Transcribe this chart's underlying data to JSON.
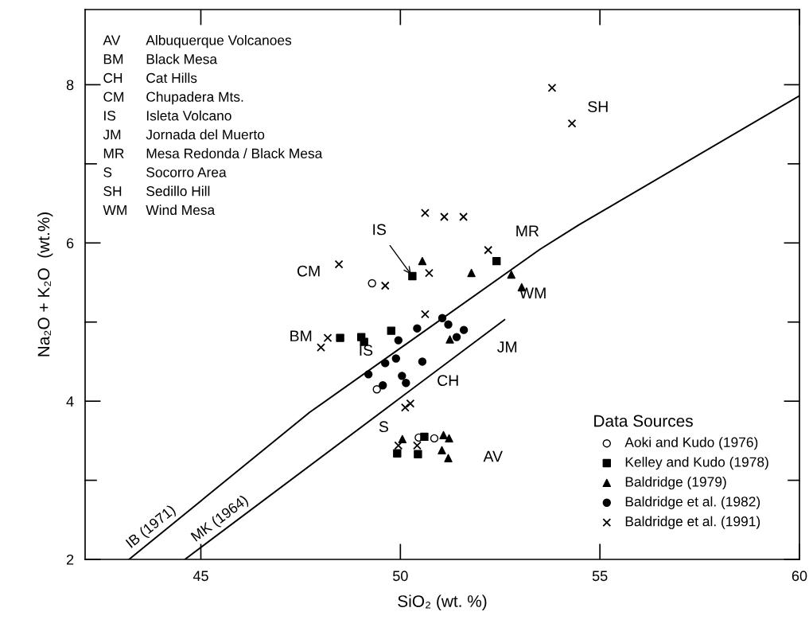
{
  "chart_data": {
    "type": "scatter",
    "xlabel": "SiO₂ (wt. %)",
    "ylabel": "Na₂O + K₂O  (wt.%)",
    "legend_title": "Data Sources",
    "legend": "bottom right",
    "xlim": [
      42.1,
      60
    ],
    "ylim": [
      2,
      8.95
    ],
    "xticks": [
      45,
      50,
      55,
      60
    ],
    "yticks": [
      2,
      {
        "value": 3,
        "label": null
      },
      4,
      {
        "value": 5,
        "label": null
      },
      6,
      {
        "value": 7,
        "label": null
      },
      8
    ],
    "grid": false,
    "series": [
      {
        "name": "Aoki and Kudo (1976)",
        "marker": "circle",
        "color": "#ffffff",
        "x": [
          49.29,
          49.41,
          50.85,
          50.46
        ],
        "values": [
          5.49,
          4.15,
          3.53,
          3.54
        ]
      },
      {
        "name": "Kelley and Kudo (1978)",
        "marker": "square",
        "color": "#000000",
        "x": [
          48.49,
          49.02,
          49.09,
          49.77,
          50.3,
          52.41,
          49.92,
          50.44,
          50.6
        ],
        "values": [
          4.8,
          4.81,
          4.75,
          4.89,
          5.58,
          5.77,
          3.34,
          3.33,
          3.55
        ]
      },
      {
        "name": "Baldridge (1979)",
        "marker": "triangle",
        "color": "#000000",
        "x": [
          50.55,
          51.78,
          52.78,
          53.04,
          51.24,
          51.08,
          51.22,
          51.04,
          51.2,
          50.05
        ],
        "values": [
          5.77,
          5.62,
          5.6,
          5.44,
          4.78,
          3.57,
          3.53,
          3.38,
          3.28,
          3.52
        ]
      },
      {
        "name": "Baldridge et al. (1982)",
        "marker": "circle",
        "color": "#000000",
        "x": [
          50.42,
          51.05,
          51.2,
          51.59,
          51.41,
          49.95,
          49.89,
          49.62,
          50.55,
          49.2,
          50.04,
          50.14,
          49.56
        ],
        "values": [
          4.92,
          5.05,
          4.97,
          4.9,
          4.81,
          4.77,
          4.54,
          4.48,
          4.5,
          4.34,
          4.32,
          4.23,
          4.2
        ]
      },
      {
        "name": "Baldridge et al. (1991)",
        "marker": "cross",
        "color": "#000000",
        "x": [
          48.46,
          49.62,
          50.62,
          48.18,
          48.01,
          50.72,
          50.12,
          50.25,
          50.62,
          51.1,
          51.58,
          52.2,
          49.95,
          50.42,
          53.8,
          54.3
        ],
        "values": [
          5.73,
          5.46,
          5.1,
          4.8,
          4.68,
          5.62,
          3.92,
          3.97,
          6.38,
          6.33,
          6.33,
          5.91,
          3.44,
          3.44,
          7.96,
          7.51
        ]
      },
      {
        "type": "line",
        "color": "#000000",
        "x": [
          43.2,
          47.73,
          53.5,
          54.48,
          60
        ],
        "values": [
          2,
          3.86,
          5.92,
          6.23,
          7.86
        ]
      },
      {
        "type": "line",
        "color": "#000000",
        "x": [
          44.6,
          52.61
        ],
        "values": [
          2,
          5.03
        ]
      }
    ],
    "annotations": [
      "AV Albuquerque Volcanoes",
      "BM Black Mesa",
      "CH Cat Hills",
      "CM Chupadera Mts.",
      "IS Isleta Volcano",
      "JM Jornada del Muerto",
      "MR Mesa Redonda / Black Mesa",
      "S Socorro Area",
      "SH Sedillo Hill",
      "WM Wind Mesa",
      "AV",
      "BM",
      "CH",
      "CM",
      "IS",
      "JM",
      "MR",
      "S",
      "SH",
      "WM",
      {
        "text": "IS",
        "x": 50.3,
        "y": 5.58
      },
      {
        "text": "IB (1971)",
        "x": 43.88,
        "y": 2.33
      },
      {
        "text": "MK (1964)",
        "x": 45.6,
        "y": 2.43
      }
    ]
  }
}
